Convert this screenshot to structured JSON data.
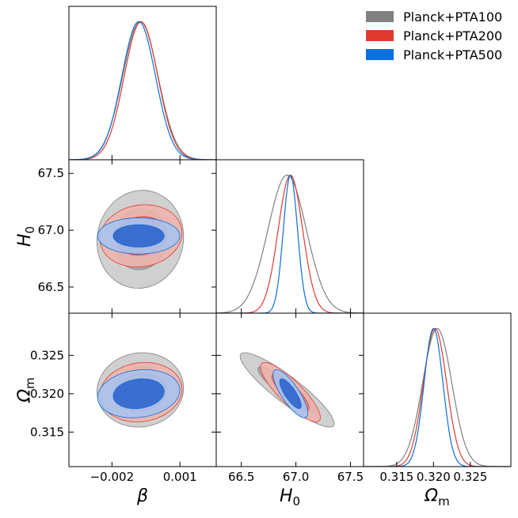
{
  "chart_data": {
    "type": "corner",
    "parameters": [
      {
        "key": "beta",
        "symbol": "β",
        "subscript": "",
        "range": [
          -0.0039,
          0.0026
        ],
        "ticks": [
          -0.002,
          0.001
        ],
        "tick_labels": [
          "−0.002",
          "0.001"
        ]
      },
      {
        "key": "H0",
        "symbol": "H",
        "subscript": "0",
        "range": [
          66.27,
          67.62
        ],
        "ticks": [
          66.5,
          67.0,
          67.5
        ],
        "tick_labels": [
          "66.5",
          "67.0",
          "67.5"
        ]
      },
      {
        "key": "Om",
        "symbol": "Ω",
        "subscript": "m",
        "range": [
          0.3105,
          0.3305
        ],
        "ticks": [
          0.315,
          0.32,
          0.325
        ],
        "tick_labels": [
          "0.315",
          "0.320",
          "0.325"
        ]
      }
    ],
    "series": [
      {
        "name": "Planck+PTA100",
        "color": "#808080",
        "fill_outer": "#c9c9c9",
        "fill_inner": "#a4a4a4",
        "means": {
          "beta": -0.00075,
          "H0": 66.92,
          "Om": 0.3205
        },
        "sigmas": {
          "beta": 0.00078,
          "H0": 0.176,
          "Om": 0.00198
        },
        "correlations": {
          "beta_H0": 0.05,
          "beta_Om": 0.05,
          "H0_Om": -0.9
        }
      },
      {
        "name": "Planck+PTA200",
        "color": "#e03a2f",
        "fill_outer": "#eeb4ac",
        "fill_inner": "#e58a80",
        "means": {
          "beta": -0.00072,
          "H0": 66.95,
          "Om": 0.3202
        },
        "sigmas": {
          "beta": 0.00074,
          "H0": 0.112,
          "Om": 0.00158
        },
        "correlations": {
          "beta_H0": 0.1,
          "beta_Om": 0.1,
          "H0_Om": -0.85
        }
      },
      {
        "name": "Planck+PTA500",
        "color": "#0b6fde",
        "fill_outer": "#a9c3ef",
        "fill_inner": "#2d64cc",
        "means": {
          "beta": -0.00082,
          "H0": 66.95,
          "Om": 0.32
        },
        "sigmas": {
          "beta": 0.00074,
          "H0": 0.065,
          "Om": 0.00128
        },
        "correlations": {
          "beta_H0": 0.0,
          "beta_Om": 0.15,
          "H0_Om": -0.8
        }
      }
    ],
    "legend": {
      "position": "top-right",
      "entries": [
        "Planck+PTA100",
        "Planck+PTA200",
        "Planck+PTA500"
      ]
    }
  }
}
